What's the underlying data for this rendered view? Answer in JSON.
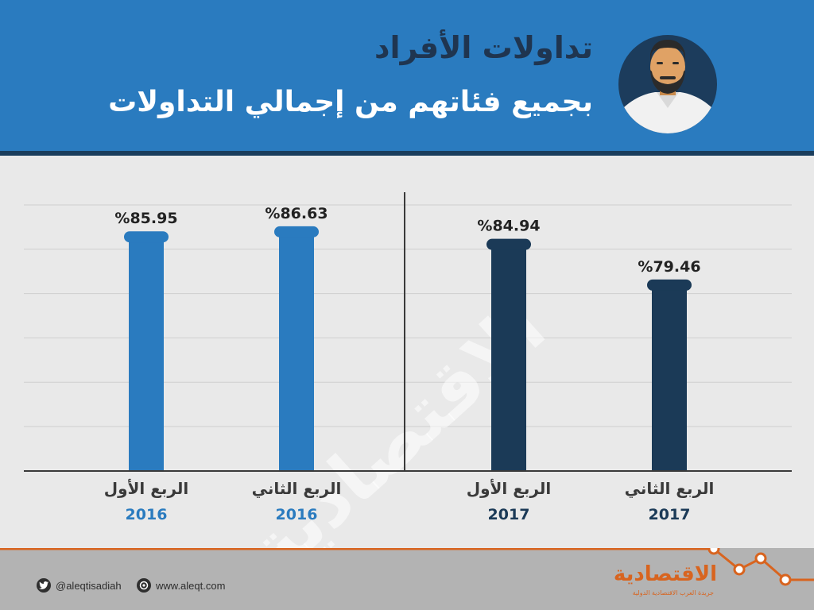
{
  "header": {
    "title": "تداولات الأفراد",
    "subtitle": "بجميع فئاتهم من إجمالي التداولات"
  },
  "colors": {
    "header_bg": "#2a7bbf",
    "title_text": "#1f3550",
    "bar_2016": "#2a7bbf",
    "bar_2017": "#1b3a57",
    "accent_orange": "#d8641f"
  },
  "chart_data": {
    "type": "bar",
    "value_format": "%{value}",
    "ylim": [
      0,
      100
    ],
    "grid": true,
    "groups": [
      {
        "year": "2016",
        "categories": [
          {
            "quarter": "الربع الأول",
            "year": "2016",
            "value": 85.95
          },
          {
            "quarter": "الربع الثاني",
            "year": "2016",
            "value": 86.63
          }
        ]
      },
      {
        "year": "2017",
        "categories": [
          {
            "quarter": "الربع الأول",
            "year": "2017",
            "value": 84.94
          },
          {
            "quarter": "الربع الثاني",
            "year": "2017",
            "value": 79.46
          }
        ]
      }
    ],
    "labels": [
      "%85.95",
      "%86.63",
      "%84.94",
      "%79.46"
    ]
  },
  "watermark": "الاقتصادية",
  "footer": {
    "twitter_handle": "@aleqtisadiah",
    "website": "www.aleqt.com",
    "brand": "الاقتصادية",
    "brand_tagline": "جريدة العرب الاقتصادية الدولية",
    "twitter_icon": "twitter-bird-icon",
    "web_icon": "globe-icon"
  }
}
